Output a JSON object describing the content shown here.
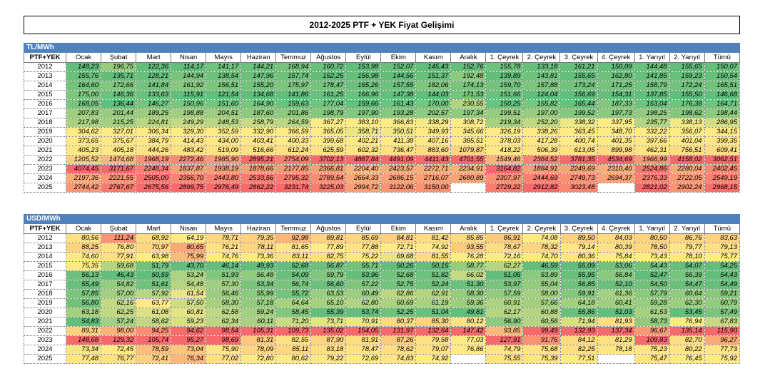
{
  "title": "2012-2025 PTF + YEK Fiyat Gelişimi",
  "tables": [
    {
      "unit": "TL/MWh",
      "header": [
        "PTF+YEK",
        "Ocak",
        "Şubat",
        "Mart",
        "Nisan",
        "Mayıs",
        "Haziran",
        "Temmuz",
        "Ağustos",
        "Eylül",
        "Ekim",
        "Kasım",
        "Aralık",
        "1. Çeyrek",
        "2. Çeyrek",
        "3. Çeyrek",
        "4. Çeyrek",
        "1. Yarıyıl",
        "2. Yarıyıl",
        "Tümü"
      ],
      "rows": [
        [
          "2012",
          "148,23",
          "196,75",
          "122,36",
          "114,17",
          "141,17",
          "144,21",
          "168,94",
          "160,72",
          "153,98",
          "152,07",
          "145,43",
          "152,76",
          "155,78",
          "133,18",
          "161,21",
          "150,09",
          "144,48",
          "155,65",
          "150,07"
        ],
        [
          "2013",
          "155,76",
          "135,71",
          "128,21",
          "144,94",
          "138,54",
          "147,96",
          "157,74",
          "152,25",
          "156,98",
          "144,56",
          "151,37",
          "192,48",
          "139,89",
          "143,81",
          "155,65",
          "162,80",
          "141,85",
          "159,23",
          "150,54"
        ],
        [
          "2014",
          "164,60",
          "172,66",
          "141,84",
          "161,92",
          "156,51",
          "155,20",
          "175,97",
          "178,47",
          "165,26",
          "157,55",
          "182,06",
          "174,13",
          "159,70",
          "157,88",
          "173,24",
          "171,25",
          "158,79",
          "172,24",
          "165,51"
        ],
        [
          "2015",
          "175,00",
          "146,36",
          "133,63",
          "115,91",
          "121,54",
          "134,68",
          "141,86",
          "161,25",
          "166,96",
          "147,38",
          "144,03",
          "171,53",
          "151,66",
          "124,04",
          "156,69",
          "154,31",
          "137,85",
          "155,50",
          "146,68"
        ],
        [
          "2016",
          "168,05",
          "136,44",
          "146,27",
          "150,96",
          "151,60",
          "164,90",
          "159,63",
          "177,04",
          "159,66",
          "161,43",
          "170,00",
          "230,55",
          "150,25",
          "155,82",
          "165,44",
          "187,33",
          "153,04",
          "176,38",
          "164,71"
        ],
        [
          "2017",
          "207,83",
          "201,44",
          "189,25",
          "198,88",
          "204,51",
          "187,60",
          "201,86",
          "198,79",
          "197,90",
          "193,28",
          "202,57",
          "197,34",
          "199,51",
          "197,00",
          "199,52",
          "197,73",
          "198,25",
          "198,62",
          "198,44"
        ],
        [
          "2018",
          "217,98",
          "215,25",
          "224,81",
          "249,29",
          "248,53",
          "258,79",
          "264,59",
          "367,27",
          "383,10",
          "366,83",
          "338,29",
          "308,72",
          "219,34",
          "252,20",
          "338,32",
          "337,95",
          "235,77",
          "338,13",
          "286,95"
        ],
        [
          "2019",
          "304,62",
          "327,01",
          "306,34",
          "329,30",
          "352,59",
          "332,90",
          "366,59",
          "365,05",
          "358,71",
          "350,51",
          "349,93",
          "345,66",
          "326,19",
          "338,26",
          "363,45",
          "348,70",
          "332,22",
          "356,07",
          "344,15"
        ],
        [
          "2020",
          "373,65",
          "375,67",
          "384,79",
          "414,43",
          "434,00",
          "403,41",
          "400,33",
          "399,68",
          "402,21",
          "411,38",
          "407,16",
          "385,51",
          "378,03",
          "417,28",
          "400,74",
          "401,35",
          "397,66",
          "401,04",
          "399,35"
        ],
        [
          "2021",
          "405,23",
          "405,18",
          "444,26",
          "483,42",
          "519,09",
          "516,66",
          "612,24",
          "625,59",
          "602,32",
          "736,47",
          "883,60",
          "1079,87",
          "418,22",
          "506,39",
          "613,05",
          "899,98",
          "462,31",
          "756,51",
          "609,41"
        ],
        [
          "2022",
          "1205,52",
          "1474,68",
          "1968,19",
          "2272,46",
          "1985,90",
          "2895,21",
          "2754,09",
          "3702,13",
          "4887,84",
          "4491,09",
          "4411,43",
          "4701,55",
          "1549,46",
          "2384,52",
          "3781,35",
          "4534,69",
          "1966,99",
          "4158,02",
          "3062,51"
        ],
        [
          "2023",
          "4074,45",
          "3171,67",
          "2248,34",
          "1837,87",
          "1938,19",
          "1878,66",
          "2177,85",
          "2366,81",
          "2204,40",
          "2423,57",
          "2272,71",
          "2234,91",
          "3164,82",
          "1884,91",
          "2249,69",
          "2310,40",
          "2524,86",
          "2280,04",
          "2402,45"
        ],
        [
          "2024",
          "2197,36",
          "2221,55",
          "2505,00",
          "2356,70",
          "2443,80",
          "2533,56",
          "2795,32",
          "2789,54",
          "2664,33",
          "2686,15",
          "2716,07",
          "2680,89",
          "2307,97",
          "2444,69",
          "2749,73",
          "2694,37",
          "2376,33",
          "2722,05",
          "2549,19"
        ],
        [
          "2025",
          "2744,42",
          "2767,67",
          "2675,56",
          "2899,75",
          "2976,49",
          "2862,22",
          "3231,74",
          "3225,03",
          "2994,72",
          "3122,06",
          "3150,00",
          null,
          "2729,22",
          "2912,82",
          "3023,48",
          null,
          "2821,02",
          "2902,24",
          "2968,15"
        ]
      ]
    },
    {
      "unit": "USD/MWh",
      "header": [
        "PTF+YEK",
        "Ocak",
        "Şubat",
        "Mart",
        "Nisan",
        "Mayıs",
        "Haziran",
        "Temmuz",
        "Ağustos",
        "Eylül",
        "Ekim",
        "Kasım",
        "Aralık",
        "1. Çeyrek",
        "2. Çeyrek",
        "3. Çeyrek",
        "4. Çeyrek",
        "1. Yarıyıl",
        "2. Yarıyıl",
        "Tümü"
      ],
      "rows": [
        [
          "2012",
          "80,56",
          "111,24",
          "68,92",
          "64,19",
          "78,71",
          "79,35",
          "92,98",
          "89,81",
          "85,69",
          "84,81",
          "81,42",
          "85,85",
          "86,91",
          "74,08",
          "89,50",
          "84,03",
          "80,50",
          "86,76",
          "83,63"
        ],
        [
          "2013",
          "88,25",
          "76,80",
          "70,97",
          "80,65",
          "76,21",
          "78,11",
          "81,65",
          "77,89",
          "77,88",
          "72,71",
          "74,92",
          "93,55",
          "78,67",
          "78,32",
          "79,14",
          "80,39",
          "78,50",
          "79,77",
          "79,13"
        ],
        [
          "2014",
          "74,60",
          "77,91",
          "63,98",
          "75,99",
          "74,76",
          "73,36",
          "83,11",
          "82,75",
          "75,22",
          "69,68",
          "81,55",
          "76,28",
          "72,16",
          "74,70",
          "80,36",
          "75,84",
          "73,43",
          "78,10",
          "75,77"
        ],
        [
          "2015",
          "75,35",
          "59,68",
          "51,79",
          "43,70",
          "46,14",
          "49,93",
          "52,68",
          "56,87",
          "55,71",
          "50,26",
          "50,15",
          "58,77",
          "62,27",
          "46,59",
          "55,09",
          "53,06",
          "54,43",
          "54,07",
          "54,25"
        ],
        [
          "2016",
          "56,13",
          "46,43",
          "50,59",
          "53,24",
          "51,93",
          "56,48",
          "54,09",
          "59,79",
          "53,96",
          "52,68",
          "51,82",
          "66,02",
          "51,05",
          "53,89",
          "55,95",
          "56,84",
          "52,47",
          "56,39",
          "54,43"
        ],
        [
          "2017",
          "55,49",
          "54,82",
          "51,61",
          "54,48",
          "57,30",
          "53,34",
          "56,74",
          "56,60",
          "57,22",
          "52,75",
          "52,24",
          "51,30",
          "53,97",
          "55,04",
          "56,85",
          "52,10",
          "54,50",
          "54,47",
          "54,49"
        ],
        [
          "2018",
          "57,85",
          "57,00",
          "57,92",
          "61,54",
          "56,46",
          "55,99",
          "55,72",
          "63,53",
          "60,49",
          "62,86",
          "62,91",
          "58,30",
          "57,59",
          "58,00",
          "59,91",
          "61,36",
          "57,79",
          "60,64",
          "59,21"
        ],
        [
          "2019",
          "56,80",
          "62,16",
          "63,77",
          "57,50",
          "58,30",
          "57,18",
          "64,64",
          "65,10",
          "62,80",
          "60,69",
          "61,19",
          "59,36",
          "60,91",
          "57,66",
          "64,18",
          "60,41",
          "59,28",
          "62,30",
          "60,79"
        ],
        [
          "2020",
          "63,18",
          "62,25",
          "61,08",
          "60,81",
          "62,58",
          "59,24",
          "58,45",
          "55,39",
          "53,74",
          "52,25",
          "51,04",
          "49,81",
          "62,17",
          "60,88",
          "55,86",
          "51,03",
          "61,53",
          "53,45",
          "57,49"
        ],
        [
          "2021",
          "54,83",
          "57,24",
          "58,62",
          "59,23",
          "62,34",
          "60,11",
          "71,20",
          "73,71",
          "70,91",
          "80,37",
          "85,30",
          "80,12",
          "56,90",
          "60,56",
          "71,94",
          "81,93",
          "58,73",
          "76,94",
          "67,83"
        ],
        [
          "2022",
          "89,31",
          "98,00",
          "94,25",
          "94,62",
          "98,54",
          "105,31",
          "109,73",
          "135,02",
          "154,05",
          "131,97",
          "132,64",
          "147,42",
          "93,85",
          "99,49",
          "132,93",
          "137,34",
          "96,67",
          "135,14",
          "115,90"
        ],
        [
          "2023",
          "148,68",
          "129,32",
          "105,74",
          "95,27",
          "98,69",
          "81,31",
          "82,55",
          "87,90",
          "81,91",
          "87,26",
          "79,58",
          "77,03",
          "127,91",
          "91,76",
          "84,12",
          "81,29",
          "109,83",
          "82,70",
          "96,27"
        ],
        [
          "2024",
          "73,34",
          "72,45",
          "78,59",
          "73,04",
          "75,90",
          "78,09",
          "85,11",
          "83,18",
          "78,47",
          "78,62",
          "79,07",
          "76,86",
          "74,79",
          "75,68",
          "82,25",
          "78,18",
          "75,23",
          "80,22",
          "77,73"
        ],
        [
          "2025",
          "77,48",
          "76,77",
          "72,41",
          "76,34",
          "77,02",
          "72,80",
          "80,62",
          "79,22",
          "72,69",
          "74,83",
          "74,92",
          null,
          "75,55",
          "75,39",
          "77,51",
          null,
          "75,47",
          "76,45",
          "75,92"
        ]
      ]
    }
  ]
}
